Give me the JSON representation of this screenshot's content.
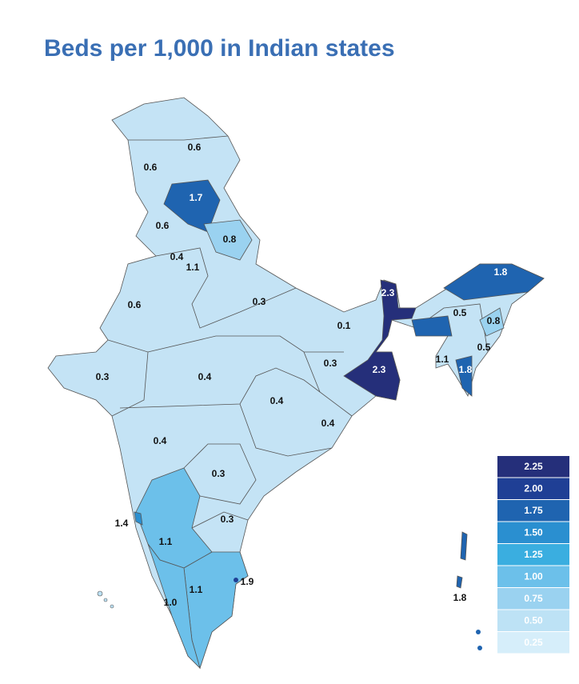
{
  "title": "Beds per 1,000 in Indian states",
  "regions": [
    "0.6",
    "0.6",
    "1.7",
    "0.6",
    "0.8",
    "0.4",
    "1.1",
    "0.6",
    "0.3",
    "2.3",
    "1.8",
    "0.5",
    "0.8",
    "0.1",
    "0.5",
    "1.1",
    "1.8",
    "0.3",
    "2.3",
    "0.3",
    "0.4",
    "0.4",
    "0.4",
    "0.4",
    "0.3",
    "1.4",
    "0.3",
    "1.1",
    "1.9",
    "1.1",
    "1.0",
    "1.8"
  ],
  "legend": [
    {
      "label": "2.25",
      "color": "#252f7a"
    },
    {
      "label": "2.00",
      "color": "#1f3f95"
    },
    {
      "label": "1.75",
      "color": "#1f64b0"
    },
    {
      "label": "1.50",
      "color": "#2a8fd0"
    },
    {
      "label": "1.25",
      "color": "#3aaee0"
    },
    {
      "label": "1.00",
      "color": "#6cc0ea"
    },
    {
      "label": "0.75",
      "color": "#9ad2f0"
    },
    {
      "label": "0.50",
      "color": "#bde2f5"
    },
    {
      "label": "0.25",
      "color": "#d6eefa"
    }
  ]
}
